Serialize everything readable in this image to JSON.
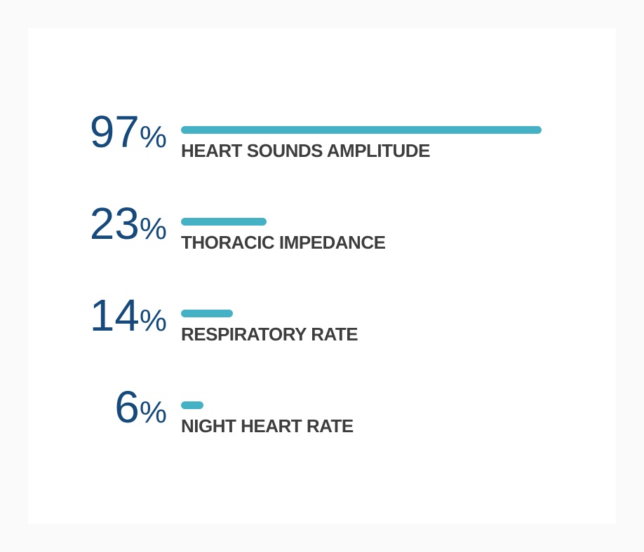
{
  "page": {
    "background_color": "#fafafa",
    "card_background_color": "#ffffff"
  },
  "chart_data": {
    "type": "bar",
    "orientation": "horizontal",
    "title": "",
    "unit": "%",
    "axis_max": 100,
    "xlim": [
      0,
      100
    ],
    "grid": false,
    "legend": false,
    "bar_color": "#45b1c5",
    "value_color": "#174a7c",
    "label_color": "#3d3d3d",
    "categories": [
      "HEART SOUNDS AMPLITUDE",
      "THORACIC IMPEDANCE",
      "RESPIRATORY RATE",
      "NIGHT HEART RATE"
    ],
    "values": [
      97,
      23,
      14,
      6
    ],
    "rows": [
      {
        "value": 97,
        "unit": "%",
        "label": "HEART SOUNDS AMPLITUDE"
      },
      {
        "value": 23,
        "unit": "%",
        "label": "THORACIC IMPEDANCE"
      },
      {
        "value": 14,
        "unit": "%",
        "label": "RESPIRATORY RATE"
      },
      {
        "value": 6,
        "unit": "%",
        "label": "NIGHT HEART RATE"
      }
    ]
  }
}
